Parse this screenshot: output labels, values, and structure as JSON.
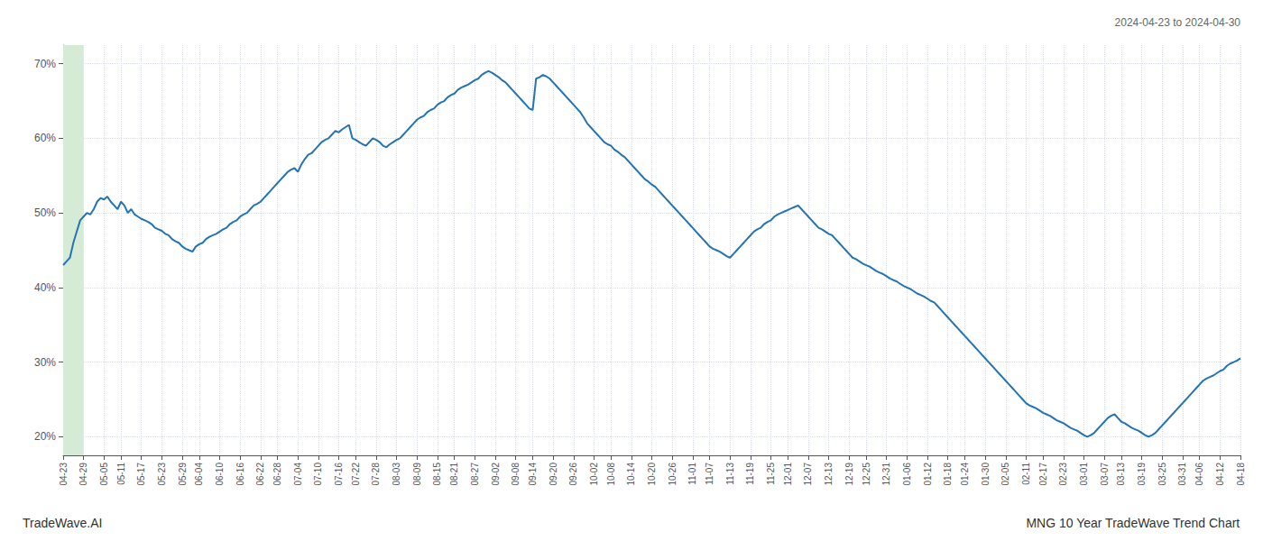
{
  "chart_data": {
    "type": "line",
    "subtitle": "2024-04-23 to 2024-04-30",
    "annotations": [
      "TradeWave.AI",
      "MNG 10 Year TradeWave Trend Chart"
    ],
    "color": "#2374b5",
    "grid": true,
    "ylim": [
      0.175,
      0.725
    ],
    "yticks": [
      {
        "value": 0.2,
        "label": "20%"
      },
      {
        "value": 0.3,
        "label": "30%"
      },
      {
        "value": 0.4,
        "label": "40%"
      },
      {
        "value": 0.5,
        "label": "50%"
      },
      {
        "value": 0.6,
        "label": "60%"
      },
      {
        "value": 0.7,
        "label": "70%"
      }
    ],
    "highlight": {
      "start": 0,
      "end": 6,
      "color": "#d6ebd6"
    },
    "categories": [
      "04-23",
      null,
      null,
      null,
      null,
      null,
      "04-29",
      null,
      null,
      null,
      null,
      null,
      "05-05",
      null,
      null,
      null,
      null,
      "05-11",
      null,
      null,
      null,
      null,
      null,
      "05-17",
      null,
      null,
      null,
      null,
      null,
      "05-23",
      null,
      null,
      null,
      null,
      null,
      "05-29",
      null,
      null,
      null,
      null,
      "06-04",
      null,
      null,
      null,
      null,
      null,
      "06-10",
      null,
      null,
      null,
      null,
      null,
      "06-16",
      null,
      null,
      null,
      null,
      null,
      "06-22",
      null,
      null,
      null,
      null,
      "06-28",
      null,
      null,
      null,
      null,
      null,
      "07-04",
      null,
      null,
      null,
      null,
      null,
      "07-10",
      null,
      null,
      null,
      null,
      null,
      "07-16",
      null,
      null,
      null,
      null,
      "07-22",
      null,
      null,
      null,
      null,
      null,
      "07-28",
      null,
      null,
      null,
      null,
      null,
      "08-03",
      null,
      null,
      null,
      null,
      null,
      "08-09",
      null,
      null,
      null,
      null,
      null,
      "08-15",
      null,
      null,
      null,
      null,
      "08-21",
      null,
      null,
      null,
      null,
      null,
      "08-27",
      null,
      null,
      null,
      null,
      null,
      "09-02",
      null,
      null,
      null,
      null,
      null,
      "09-08",
      null,
      null,
      null,
      null,
      "09-14",
      null,
      null,
      null,
      null,
      null,
      "09-20",
      null,
      null,
      null,
      null,
      null,
      "09-26",
      null,
      null,
      null,
      null,
      null,
      "10-02",
      null,
      null,
      null,
      null,
      "10-08",
      null,
      null,
      null,
      null,
      null,
      "10-14",
      null,
      null,
      null,
      null,
      null,
      "10-20",
      null,
      null,
      null,
      null,
      null,
      "10-26",
      null,
      null,
      null,
      null,
      null,
      "11-01",
      null,
      null,
      null,
      null,
      "11-07",
      null,
      null,
      null,
      null,
      null,
      "11-13",
      null,
      null,
      null,
      null,
      null,
      "11-19",
      null,
      null,
      null,
      null,
      null,
      "11-25",
      null,
      null,
      null,
      null,
      "12-01",
      null,
      null,
      null,
      null,
      null,
      "12-07",
      null,
      null,
      null,
      null,
      null,
      "12-13",
      null,
      null,
      null,
      null,
      null,
      "12-19",
      null,
      null,
      null,
      null,
      "12-25",
      null,
      null,
      null,
      null,
      null,
      "12-31",
      null,
      null,
      null,
      null,
      null,
      "01-06",
      null,
      null,
      null,
      null,
      null,
      "01-12",
      null,
      null,
      null,
      null,
      null,
      "01-18",
      null,
      null,
      null,
      null,
      "01-24",
      null,
      null,
      null,
      null,
      null,
      "01-30",
      null,
      null,
      null,
      null,
      null,
      "02-05",
      null,
      null,
      null,
      null,
      null,
      "02-11",
      null,
      null,
      null,
      null,
      "02-17",
      null,
      null,
      null,
      null,
      null,
      "02-23",
      null,
      null,
      null,
      null,
      null,
      "03-01",
      null,
      null,
      null,
      null,
      null,
      "03-07",
      null,
      null,
      null,
      null,
      "03-13",
      null,
      null,
      null,
      null,
      null,
      "03-19",
      null,
      null,
      null,
      null,
      null,
      "03-25",
      null,
      null,
      null,
      null,
      null,
      "03-31",
      null,
      null,
      null,
      null,
      "04-06",
      null,
      null,
      null,
      null,
      null,
      "04-12",
      null,
      null,
      null,
      null,
      null,
      "04-18"
    ],
    "values": [
      0.43,
      0.435,
      0.44,
      0.46,
      0.475,
      0.49,
      0.495,
      0.5,
      0.498,
      0.505,
      0.515,
      0.52,
      0.518,
      0.522,
      0.515,
      0.51,
      0.505,
      0.515,
      0.51,
      0.5,
      0.505,
      0.498,
      0.495,
      0.492,
      0.49,
      0.488,
      0.485,
      0.48,
      0.478,
      0.476,
      0.472,
      0.47,
      0.465,
      0.462,
      0.46,
      0.455,
      0.452,
      0.45,
      0.448,
      0.455,
      0.458,
      0.46,
      0.465,
      0.468,
      0.47,
      0.472,
      0.475,
      0.478,
      0.48,
      0.485,
      0.488,
      0.49,
      0.495,
      0.498,
      0.5,
      0.505,
      0.51,
      0.512,
      0.515,
      0.52,
      0.525,
      0.53,
      0.535,
      0.54,
      0.545,
      0.55,
      0.555,
      0.558,
      0.56,
      0.555,
      0.565,
      0.572,
      0.578,
      0.58,
      0.585,
      0.59,
      0.595,
      0.598,
      0.6,
      0.605,
      0.61,
      0.608,
      0.612,
      0.615,
      0.618,
      0.6,
      0.598,
      0.595,
      0.592,
      0.59,
      0.595,
      0.6,
      0.598,
      0.595,
      0.59,
      0.588,
      0.592,
      0.595,
      0.598,
      0.6,
      0.605,
      0.61,
      0.615,
      0.62,
      0.625,
      0.628,
      0.63,
      0.635,
      0.638,
      0.64,
      0.645,
      0.648,
      0.65,
      0.655,
      0.658,
      0.66,
      0.665,
      0.668,
      0.67,
      0.672,
      0.675,
      0.678,
      0.68,
      0.685,
      0.688,
      0.69,
      0.688,
      0.685,
      0.682,
      0.678,
      0.675,
      0.67,
      0.665,
      0.66,
      0.655,
      0.65,
      0.645,
      0.64,
      0.638,
      0.68,
      0.682,
      0.685,
      0.683,
      0.68,
      0.675,
      0.67,
      0.665,
      0.66,
      0.655,
      0.65,
      0.645,
      0.64,
      0.635,
      0.628,
      0.62,
      0.615,
      0.61,
      0.605,
      0.6,
      0.595,
      0.592,
      0.59,
      0.585,
      0.582,
      0.578,
      0.575,
      0.57,
      0.565,
      0.56,
      0.555,
      0.55,
      0.545,
      0.542,
      0.538,
      0.535,
      0.53,
      0.525,
      0.52,
      0.515,
      0.51,
      0.505,
      0.5,
      0.495,
      0.49,
      0.485,
      0.48,
      0.475,
      0.47,
      0.465,
      0.46,
      0.455,
      0.452,
      0.45,
      0.448,
      0.445,
      0.442,
      0.44,
      0.445,
      0.45,
      0.455,
      0.46,
      0.465,
      0.47,
      0.475,
      0.478,
      0.48,
      0.485,
      0.488,
      0.49,
      0.495,
      0.498,
      0.5,
      0.502,
      0.504,
      0.506,
      0.508,
      0.51,
      0.505,
      0.5,
      0.495,
      0.49,
      0.485,
      0.48,
      0.478,
      0.475,
      0.472,
      0.47,
      0.465,
      0.46,
      0.455,
      0.45,
      0.445,
      0.44,
      0.438,
      0.435,
      0.432,
      0.43,
      0.428,
      0.425,
      0.422,
      0.42,
      0.418,
      0.415,
      0.412,
      0.41,
      0.408,
      0.405,
      0.402,
      0.4,
      0.398,
      0.395,
      0.392,
      0.39,
      0.388,
      0.385,
      0.382,
      0.38,
      0.375,
      0.37,
      0.365,
      0.36,
      0.355,
      0.35,
      0.345,
      0.34,
      0.335,
      0.33,
      0.325,
      0.32,
      0.315,
      0.31,
      0.305,
      0.3,
      0.295,
      0.29,
      0.285,
      0.28,
      0.275,
      0.27,
      0.265,
      0.26,
      0.255,
      0.25,
      0.245,
      0.242,
      0.24,
      0.238,
      0.235,
      0.232,
      0.23,
      0.228,
      0.225,
      0.222,
      0.22,
      0.218,
      0.215,
      0.212,
      0.21,
      0.208,
      0.205,
      0.202,
      0.2,
      0.202,
      0.205,
      0.21,
      0.215,
      0.22,
      0.225,
      0.228,
      0.23,
      0.225,
      0.22,
      0.218,
      0.215,
      0.212,
      0.21,
      0.208,
      0.205,
      0.202,
      0.2,
      0.202,
      0.205,
      0.21,
      0.215,
      0.22,
      0.225,
      0.23,
      0.235,
      0.24,
      0.245,
      0.25,
      0.255,
      0.26,
      0.265,
      0.27,
      0.275,
      0.278,
      0.28,
      0.282,
      0.285,
      0.288,
      0.29,
      0.295,
      0.298,
      0.3,
      0.302,
      0.305
    ]
  }
}
